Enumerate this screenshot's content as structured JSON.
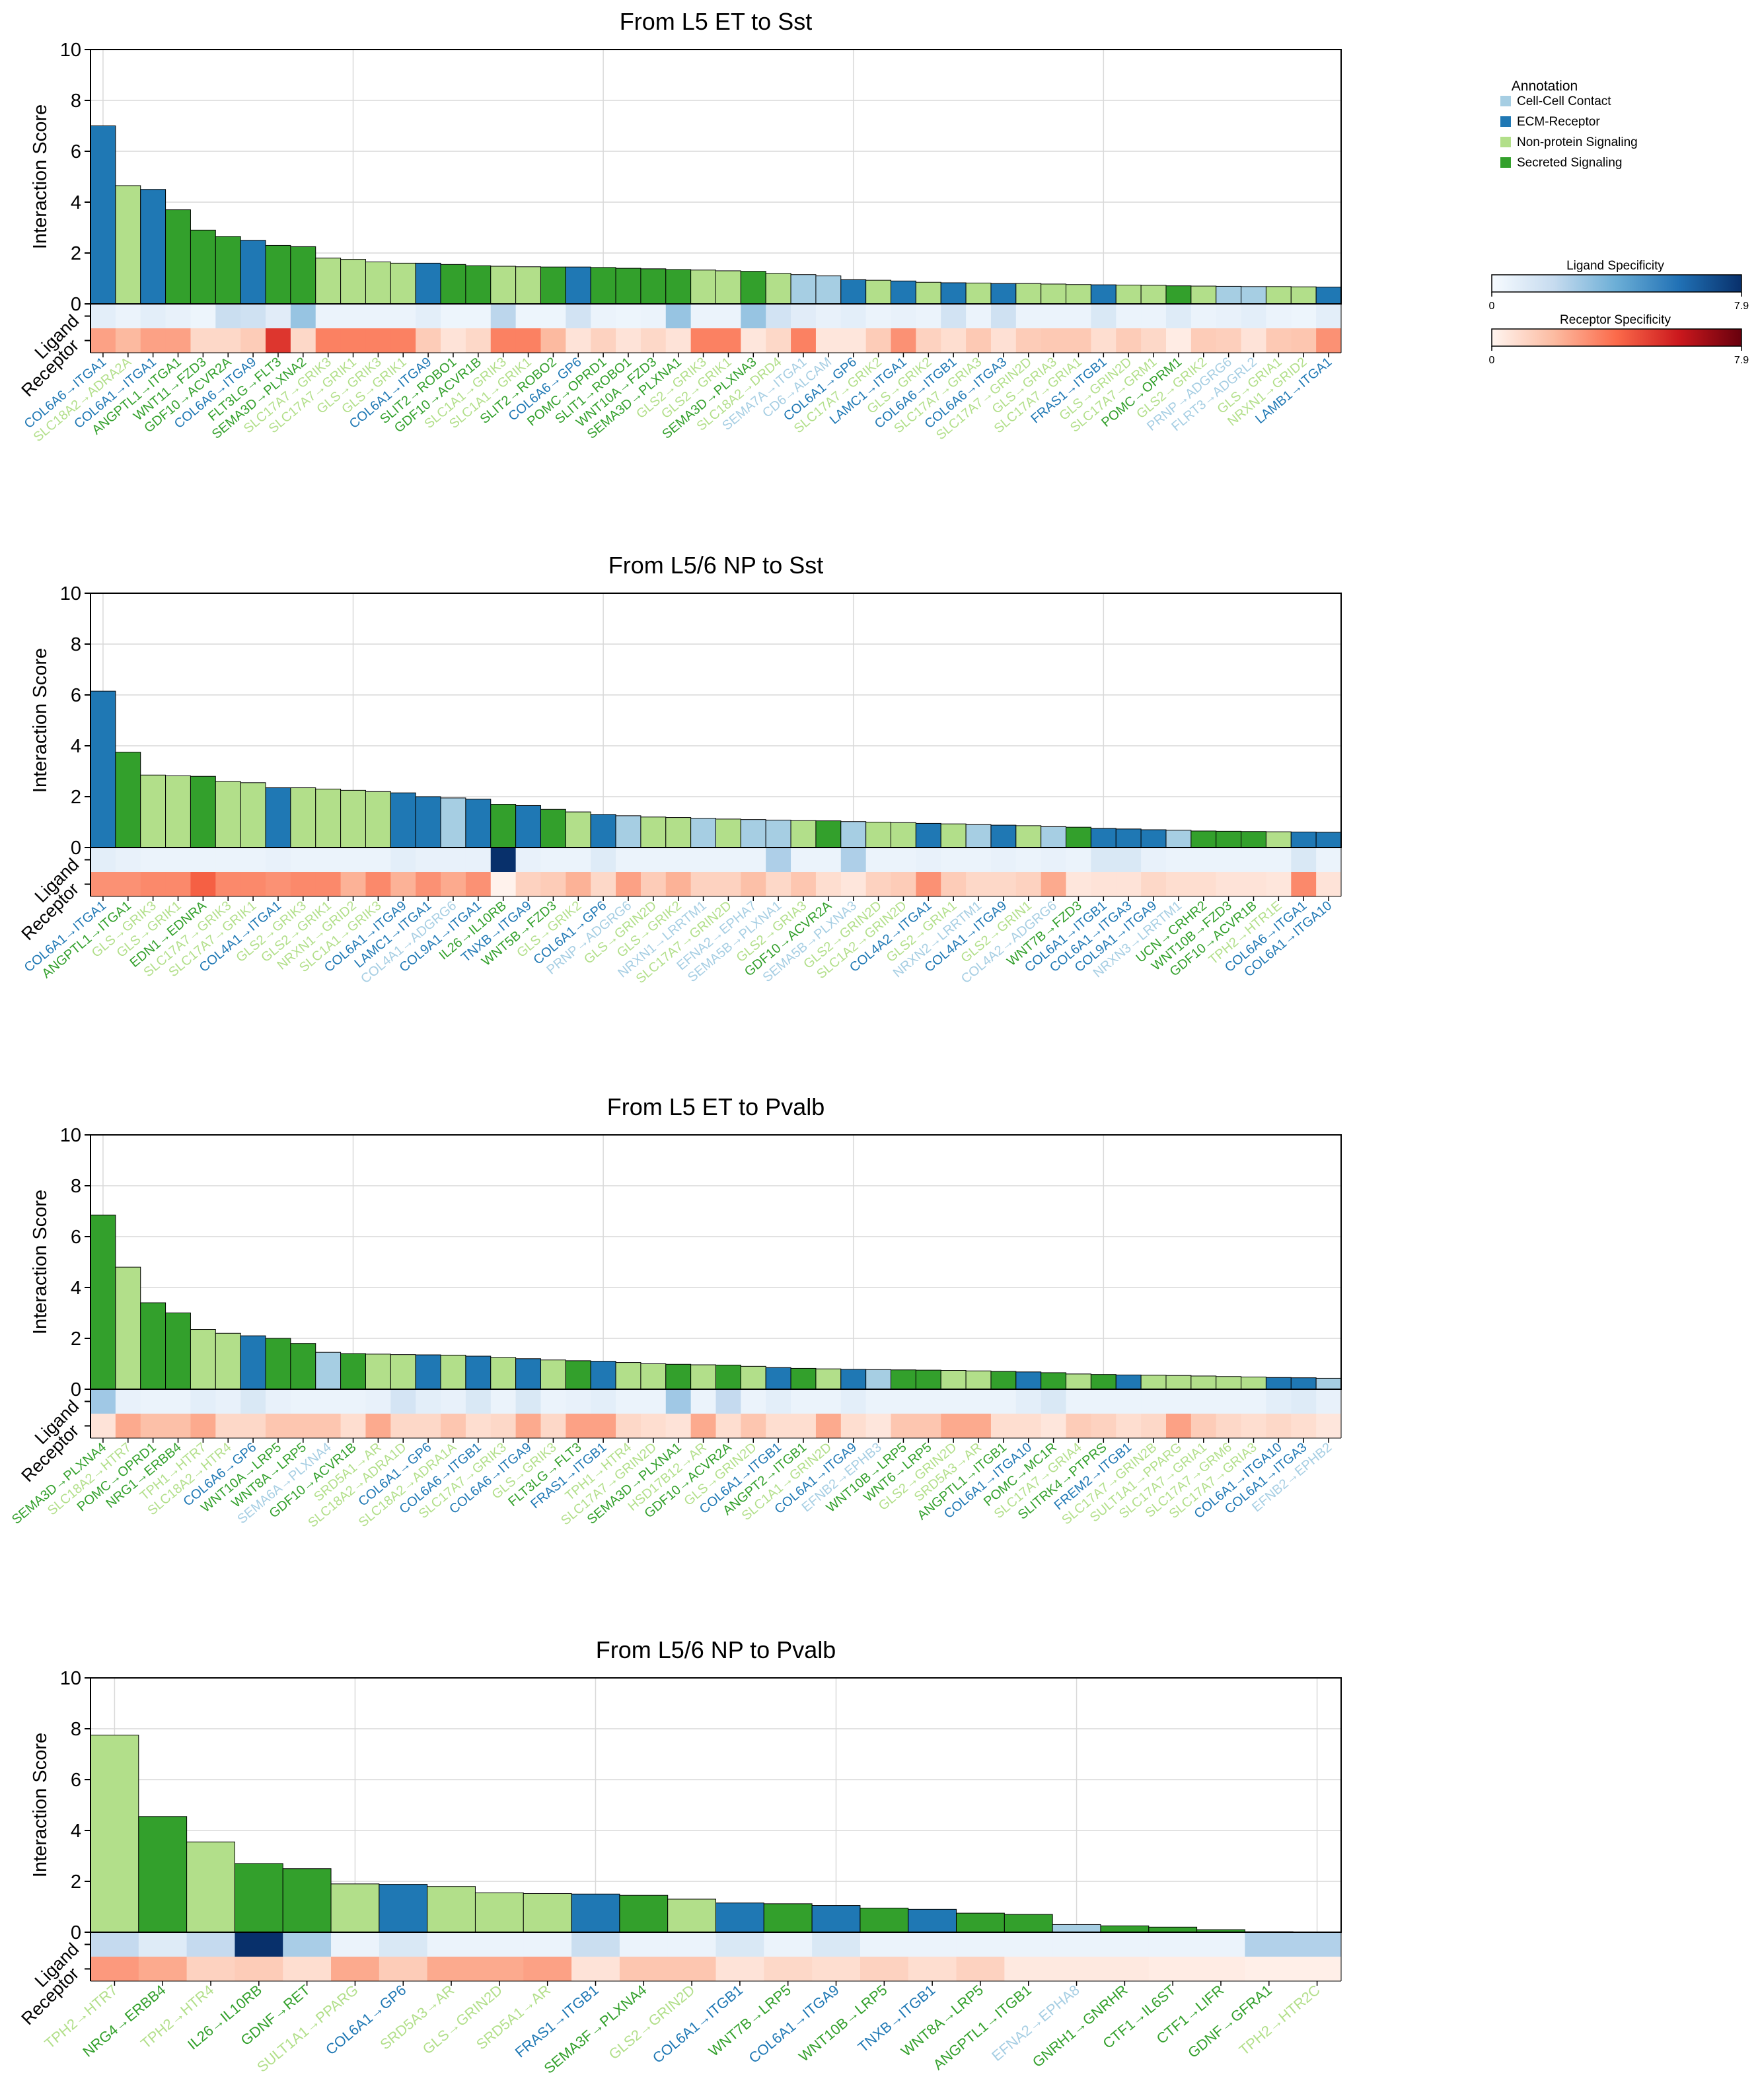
{
  "annotation_colors": {
    "Cell-Cell Contact": "#a6cee3",
    "ECM-Receptor": "#1f78b4",
    "Non-protein Signaling": "#b2df8a",
    "Secreted Signaling": "#33a02c"
  },
  "legend": {
    "title": "Annotation",
    "items": [
      "Cell-Cell Contact",
      "ECM-Receptor",
      "Non-protein Signaling",
      "Secreted Signaling"
    ]
  },
  "colorbars": {
    "ligand": {
      "title": "Ligand Specificity",
      "min_label": "0",
      "max_label": "7.9",
      "min": 0,
      "max": 7.9
    },
    "receptor": {
      "title": "Receptor Specificity",
      "min_label": "0",
      "max_label": "7.9",
      "min": 0,
      "max": 7.9
    }
  },
  "chart_data": [
    {
      "type": "bar",
      "title": "From L5 ET to Sst",
      "ylabel": "Interaction Score",
      "row_labels": [
        "Ligand",
        "Receptor"
      ],
      "ylim": [
        0,
        10
      ],
      "yticks": [
        "0",
        "2",
        "4",
        "6",
        "8",
        "10"
      ],
      "categories": [
        "COL6A6->ITGA1",
        "SLC18A2->ADRA2A",
        "COL6A1->ITGA1",
        "ANGPTL1->ITGA1",
        "WNT11->FZD3",
        "GDF10->ACVR2A",
        "COL6A6->ITGA9",
        "FLT3LG->FLT3",
        "SEMA3D->PLXNA2",
        "SLC17A7->GRIK3",
        "SLC17A7->GRIK1",
        "GLS->GRIK3",
        "GLS->GRIK1",
        "COL6A1->ITGA9",
        "SLIT2->ROBO1",
        "GDF10->ACVR1B",
        "SLC1A1->GRIK3",
        "SLC1A1->GRIK1",
        "SLIT2->ROBO2",
        "COL6A6->GP6",
        "POMC->OPRD1",
        "SLIT1->ROBO1",
        "WNT10A->FZD3",
        "SEMA3D->PLXNA1",
        "GLS2->GRIK3",
        "GLS2->GRIK1",
        "SEMA3D->PLXNA3",
        "SLC18A2->DRD4",
        "SEMA7A->ITGA1",
        "CD6->ALCAM",
        "COL6A1->GP6",
        "SLC17A7->GRIK2",
        "LAMC1->ITGA1",
        "GLS->GRIK2",
        "COL6A6->ITGB1",
        "SLC17A7->GRIA3",
        "COL6A6->ITGA3",
        "SLC17A7->GRIN2D",
        "GLS->GRIA3",
        "SLC17A7->GRIA1",
        "FRAS1->ITGB1",
        "GLS->GRIN2D",
        "SLC17A7->GRM1",
        "POMC->OPRM1",
        "GLS2->GRIK2",
        "PRNP->ADGRG6",
        "FLRT3->ADGRL2",
        "GLS->GRIA1",
        "NRXN1->GRID2",
        "LAMB1->ITGA1"
      ],
      "values": [
        7.0,
        4.65,
        4.5,
        3.7,
        2.9,
        2.65,
        2.5,
        2.3,
        2.25,
        1.8,
        1.75,
        1.65,
        1.6,
        1.6,
        1.55,
        1.5,
        1.48,
        1.46,
        1.45,
        1.45,
        1.43,
        1.4,
        1.38,
        1.35,
        1.33,
        1.3,
        1.28,
        1.2,
        1.15,
        1.1,
        0.95,
        0.93,
        0.9,
        0.85,
        0.83,
        0.82,
        0.8,
        0.8,
        0.78,
        0.76,
        0.75,
        0.74,
        0.73,
        0.71,
        0.7,
        0.69,
        0.68,
        0.68,
        0.67,
        0.66
      ],
      "annotations": [
        "ECM-Receptor",
        "Non-protein Signaling",
        "ECM-Receptor",
        "Secreted Signaling",
        "Secreted Signaling",
        "Secreted Signaling",
        "ECM-Receptor",
        "Secreted Signaling",
        "Secreted Signaling",
        "Non-protein Signaling",
        "Non-protein Signaling",
        "Non-protein Signaling",
        "Non-protein Signaling",
        "ECM-Receptor",
        "Secreted Signaling",
        "Secreted Signaling",
        "Non-protein Signaling",
        "Non-protein Signaling",
        "Secreted Signaling",
        "ECM-Receptor",
        "Secreted Signaling",
        "Secreted Signaling",
        "Secreted Signaling",
        "Secreted Signaling",
        "Non-protein Signaling",
        "Non-protein Signaling",
        "Secreted Signaling",
        "Non-protein Signaling",
        "Cell-Cell Contact",
        "Cell-Cell Contact",
        "ECM-Receptor",
        "Non-protein Signaling",
        "ECM-Receptor",
        "Non-protein Signaling",
        "ECM-Receptor",
        "Non-protein Signaling",
        "ECM-Receptor",
        "Non-protein Signaling",
        "Non-protein Signaling",
        "Non-protein Signaling",
        "ECM-Receptor",
        "Non-protein Signaling",
        "Non-protein Signaling",
        "Secreted Signaling",
        "Non-protein Signaling",
        "Cell-Cell Contact",
        "Cell-Cell Contact",
        "Non-protein Signaling",
        "Non-protein Signaling",
        "ECM-Receptor"
      ],
      "ligand_specificity": [
        0.8,
        0.5,
        0.8,
        0.6,
        0.4,
        1.8,
        1.6,
        0.9,
        3.0,
        0.5,
        0.5,
        0.5,
        0.5,
        0.8,
        0.4,
        0.4,
        2.2,
        0.4,
        0.4,
        1.5,
        0.5,
        0.4,
        0.5,
        3.0,
        0.5,
        0.5,
        3.0,
        1.5,
        0.9,
        0.6,
        0.8,
        0.5,
        0.6,
        0.5,
        1.5,
        0.5,
        1.6,
        0.5,
        0.5,
        0.5,
        1.2,
        0.5,
        0.5,
        1.0,
        0.5,
        0.6,
        0.8,
        0.5,
        0.4,
        0.8
      ],
      "receptor_specificity": [
        2.6,
        2.0,
        2.6,
        2.6,
        1.0,
        1.0,
        1.4,
        5.2,
        1.0,
        3.4,
        3.4,
        3.4,
        3.4,
        1.4,
        0.6,
        1.0,
        3.4,
        3.4,
        2.0,
        0.6,
        1.2,
        0.6,
        1.0,
        0.6,
        3.4,
        3.4,
        0.5,
        1.0,
        3.4,
        0.5,
        0.5,
        1.4,
        3.0,
        1.2,
        0.8,
        1.5,
        0.7,
        1.4,
        1.5,
        1.5,
        0.8,
        1.4,
        1.0,
        0.3,
        1.4,
        1.3,
        0.6,
        1.5,
        1.6,
        3.0
      ]
    },
    {
      "type": "bar",
      "title": "From L5/6 NP to Sst",
      "ylabel": "Interaction Score",
      "row_labels": [
        "Ligand",
        "Receptor"
      ],
      "ylim": [
        0,
        10
      ],
      "yticks": [
        "0",
        "2",
        "4",
        "6",
        "8",
        "10"
      ],
      "categories": [
        "COL6A1->ITGA1",
        "ANGPTL1->ITGA1",
        "GLS->GRIK3",
        "GLS->GRIK1",
        "EDN1->EDNRA",
        "SLC17A7->GRIK3",
        "SLC17A7->GRIK1",
        "COL4A1->ITGA1",
        "GLS2->GRIK3",
        "GLS2->GRIK1",
        "NRXN1->GRID2",
        "SLC1A1->GRIK3",
        "COL6A1->ITGA9",
        "LAMC1->ITGA1",
        "COL4A1->ADGRG6",
        "COL9A1->ITGA1",
        "IL26->IL10RB",
        "TNXB->ITGA9",
        "WNT5B->FZD3",
        "GLS->GRIK2",
        "COL6A1->GP6",
        "PRNP->ADGRG6",
        "GLS->GRIN2D",
        "GLS->GRIK2",
        "NRXN1->LRRTM1",
        "SLC17A7->GRIN2D",
        "EFNA2->EPHA7",
        "SEMA5B->PLXNA1",
        "GLS2->GRIA3",
        "GDF10->ACVR2A",
        "SEMA5B->PLXNA3",
        "GLS2->GRIN2D",
        "SLC1A2->GRIN2D",
        "COL4A2->ITGA1",
        "GLS2->GRIA1",
        "NRXN2->LRRTM1",
        "COL4A1->ITGA9",
        "GLS2->GRIN1",
        "COL4A2->ADGRG6",
        "WNT7B->FZD3",
        "COL6A1->ITGB1",
        "COL6A1->ITGA3",
        "COL9A1->ITGA9",
        "NRXN3->LRRTM1",
        "UCN->CRHR2",
        "WNT10B->FZD3",
        "GDF10->ACVR1B",
        "TPH2->HTR1E",
        "COL6A6->ITGA1",
        "COL6A1->ITGA10"
      ],
      "values": [
        6.15,
        3.75,
        2.85,
        2.82,
        2.8,
        2.6,
        2.55,
        2.35,
        2.35,
        2.3,
        2.25,
        2.2,
        2.15,
        2.0,
        1.95,
        1.9,
        1.7,
        1.65,
        1.5,
        1.4,
        1.3,
        1.25,
        1.2,
        1.18,
        1.15,
        1.12,
        1.1,
        1.08,
        1.06,
        1.05,
        1.02,
        1.0,
        0.98,
        0.95,
        0.93,
        0.9,
        0.88,
        0.86,
        0.82,
        0.8,
        0.75,
        0.73,
        0.7,
        0.68,
        0.65,
        0.64,
        0.63,
        0.62,
        0.61,
        0.6
      ],
      "annotations": [
        "ECM-Receptor",
        "Secreted Signaling",
        "Non-protein Signaling",
        "Non-protein Signaling",
        "Secreted Signaling",
        "Non-protein Signaling",
        "Non-protein Signaling",
        "ECM-Receptor",
        "Non-protein Signaling",
        "Non-protein Signaling",
        "Non-protein Signaling",
        "Non-protein Signaling",
        "ECM-Receptor",
        "ECM-Receptor",
        "Cell-Cell Contact",
        "ECM-Receptor",
        "Secreted Signaling",
        "ECM-Receptor",
        "Secreted Signaling",
        "Non-protein Signaling",
        "ECM-Receptor",
        "Cell-Cell Contact",
        "Non-protein Signaling",
        "Non-protein Signaling",
        "Cell-Cell Contact",
        "Non-protein Signaling",
        "Cell-Cell Contact",
        "Cell-Cell Contact",
        "Non-protein Signaling",
        "Secreted Signaling",
        "Cell-Cell Contact",
        "Non-protein Signaling",
        "Non-protein Signaling",
        "ECM-Receptor",
        "Non-protein Signaling",
        "Cell-Cell Contact",
        "ECM-Receptor",
        "Non-protein Signaling",
        "Cell-Cell Contact",
        "Secreted Signaling",
        "ECM-Receptor",
        "ECM-Receptor",
        "ECM-Receptor",
        "Cell-Cell Contact",
        "Secreted Signaling",
        "Secreted Signaling",
        "Secreted Signaling",
        "Non-protein Signaling",
        "ECM-Receptor",
        "ECM-Receptor"
      ],
      "ligand_specificity": [
        0.8,
        0.6,
        0.5,
        0.5,
        0.5,
        0.5,
        0.5,
        0.6,
        0.5,
        0.5,
        0.5,
        0.5,
        0.8,
        0.6,
        0.6,
        0.6,
        7.9,
        0.6,
        0.5,
        0.5,
        1.0,
        0.5,
        0.5,
        0.5,
        0.5,
        0.5,
        0.5,
        2.5,
        0.5,
        0.5,
        2.5,
        0.5,
        0.5,
        0.6,
        0.5,
        0.5,
        0.6,
        0.5,
        0.6,
        0.5,
        1.2,
        1.2,
        0.6,
        0.5,
        0.5,
        0.5,
        0.5,
        0.5,
        1.2,
        0.5
      ],
      "receptor_specificity": [
        3.0,
        3.0,
        3.2,
        3.2,
        4.2,
        3.2,
        3.2,
        3.0,
        3.2,
        3.2,
        2.2,
        3.2,
        2.2,
        3.0,
        2.4,
        3.0,
        0.1,
        1.2,
        1.4,
        2.2,
        1.0,
        2.6,
        1.4,
        2.2,
        1.2,
        1.2,
        1.8,
        1.0,
        1.6,
        0.8,
        0.5,
        1.2,
        1.4,
        3.0,
        1.4,
        1.0,
        1.0,
        1.2,
        2.4,
        0.5,
        0.6,
        0.6,
        1.0,
        0.8,
        0.8,
        0.6,
        0.6,
        0.5,
        3.2,
        0.6
      ]
    },
    {
      "type": "bar",
      "title": "From L5 ET to Pvalb",
      "ylabel": "Interaction Score",
      "row_labels": [
        "Ligand",
        "Receptor"
      ],
      "ylim": [
        0,
        10
      ],
      "yticks": [
        "0",
        "2",
        "4",
        "6",
        "8",
        "10"
      ],
      "categories": [
        "SEMA3D->PLXNA4",
        "SLC18A2->HTR7",
        "POMC->OPRD1",
        "NRG1->ERBB4",
        "TPH1->HTR7",
        "SLC18A2->HTR4",
        "COL6A6->GP6",
        "WNT10A->LRP5",
        "WNT8A->LRP5",
        "SEMA6A->PLXNA4",
        "GDF10->ACVR1B",
        "SRD5A1->AR",
        "SLC18A2->ADRA1D",
        "COL6A1->GP6",
        "SLC18A2->ADRA1A",
        "COL6A6->ITGB1",
        "SLC17A7->GRIK3",
        "COL6A6->ITGA9",
        "GLS->GRIK3",
        "FLT3LG->FLT3",
        "FRAS1->ITGB1",
        "TPH1->HTR4",
        "SLC17A7->GRIN2D",
        "SEMA3D->PLXNA1",
        "HSD17B12->AR",
        "GDF10->ACVR2A",
        "GLS->GRIN2D",
        "COL6A1->ITGB1",
        "ANGPT2->ITGB1",
        "SLC1A1->GRIN2D",
        "COL6A1->ITGA9",
        "EFNB2->EPHB3",
        "WNT10B->LRP5",
        "WNT6->LRP5",
        "GLS2->GRIN2D",
        "SRD5A3->AR",
        "ANGPTL1->ITGB1",
        "COL6A1->ITGA10",
        "POMC->MC1R",
        "SLC17A7->GRIA4",
        "SLITRK4->PTPRS",
        "FREM2->ITGB1",
        "SLC17A7->GRIN2B",
        "SULT1A1->PPARG",
        "SLC17A7->GRIA1",
        "SLC17A7->GRM6",
        "SLC17A7->GRIA3",
        "COL6A1->ITGA10",
        "COL6A1->ITGA3",
        "EFNB2->EPHB2"
      ],
      "values": [
        6.85,
        4.8,
        3.4,
        3.0,
        2.35,
        2.2,
        2.1,
        2.0,
        1.8,
        1.45,
        1.4,
        1.38,
        1.36,
        1.35,
        1.34,
        1.3,
        1.25,
        1.2,
        1.15,
        1.12,
        1.1,
        1.05,
        1.0,
        0.98,
        0.96,
        0.95,
        0.9,
        0.85,
        0.82,
        0.8,
        0.78,
        0.77,
        0.76,
        0.75,
        0.74,
        0.72,
        0.7,
        0.68,
        0.65,
        0.6,
        0.58,
        0.56,
        0.55,
        0.54,
        0.52,
        0.5,
        0.48,
        0.46,
        0.45,
        0.43
      ],
      "annotations": [
        "Secreted Signaling",
        "Non-protein Signaling",
        "Secreted Signaling",
        "Secreted Signaling",
        "Non-protein Signaling",
        "Non-protein Signaling",
        "ECM-Receptor",
        "Secreted Signaling",
        "Secreted Signaling",
        "Cell-Cell Contact",
        "Secreted Signaling",
        "Non-protein Signaling",
        "Non-protein Signaling",
        "ECM-Receptor",
        "Non-protein Signaling",
        "ECM-Receptor",
        "Non-protein Signaling",
        "ECM-Receptor",
        "Non-protein Signaling",
        "Secreted Signaling",
        "ECM-Receptor",
        "Non-protein Signaling",
        "Non-protein Signaling",
        "Secreted Signaling",
        "Non-protein Signaling",
        "Secreted Signaling",
        "Non-protein Signaling",
        "ECM-Receptor",
        "Secreted Signaling",
        "Non-protein Signaling",
        "ECM-Receptor",
        "Cell-Cell Contact",
        "Secreted Signaling",
        "Secreted Signaling",
        "Non-protein Signaling",
        "Non-protein Signaling",
        "Secreted Signaling",
        "ECM-Receptor",
        "Secreted Signaling",
        "Non-protein Signaling",
        "Secreted Signaling",
        "ECM-Receptor",
        "Non-protein Signaling",
        "Non-protein Signaling",
        "Non-protein Signaling",
        "Non-protein Signaling",
        "Non-protein Signaling",
        "ECM-Receptor",
        "ECM-Receptor",
        "Cell-Cell Contact"
      ],
      "ligand_specificity": [
        2.8,
        0.6,
        0.5,
        0.5,
        0.8,
        0.6,
        1.2,
        0.6,
        0.5,
        0.5,
        0.5,
        0.6,
        1.4,
        0.8,
        0.6,
        1.2,
        0.5,
        1.2,
        0.5,
        0.6,
        0.8,
        0.5,
        0.5,
        2.8,
        0.5,
        2.0,
        0.5,
        0.8,
        0.5,
        0.5,
        0.8,
        0.5,
        0.5,
        0.5,
        0.5,
        0.5,
        0.5,
        0.8,
        1.2,
        0.5,
        0.5,
        0.5,
        0.5,
        0.5,
        0.5,
        0.5,
        0.5,
        0.8,
        1.0,
        0.6
      ],
      "receptor_specificity": [
        0.6,
        2.4,
        1.8,
        1.8,
        2.4,
        1.0,
        1.0,
        1.6,
        1.6,
        1.6,
        0.8,
        2.4,
        1.0,
        1.0,
        1.6,
        0.8,
        1.0,
        2.4,
        1.0,
        2.6,
        2.6,
        1.0,
        0.8,
        0.6,
        2.4,
        0.8,
        1.6,
        0.8,
        0.8,
        2.4,
        0.8,
        0.5,
        1.6,
        1.6,
        2.4,
        2.4,
        0.8,
        0.8,
        0.5,
        1.4,
        1.2,
        0.8,
        1.0,
        2.6,
        1.4,
        1.0,
        0.8,
        1.0,
        0.8,
        0.5
      ]
    },
    {
      "type": "bar",
      "title": "From L5/6 NP to Pvalb",
      "ylabel": "Interaction Score",
      "row_labels": [
        "Ligand",
        "Receptor"
      ],
      "ylim": [
        0,
        10
      ],
      "yticks": [
        "0",
        "2",
        "4",
        "6",
        "8",
        "10"
      ],
      "categories": [
        "TPH2->HTR7",
        "NRG4->ERBB4",
        "TPH2->HTR4",
        "IL26->IL10RB",
        "GDNF->RET",
        "SULT1A1->PPARG",
        "COL6A1->GP6",
        "SRD5A3->AR",
        "GLS->GRIN2D",
        "SRD5A1->AR",
        "FRAS1->ITGB1",
        "SEMA3F->PLXNA4",
        "GLS2->GRIN2D",
        "COL6A1->ITGB1",
        "WNT7B->LRP5",
        "COL6A1->ITGA9",
        "WNT10B->LRP5",
        "TNXB->ITGB1",
        "WNT8A->LRP5",
        "ANGPTL1->ITGB1",
        "EFNA2->EPHA8",
        "GNRH1->GNRHR",
        "CTF1->IL6ST",
        "CTF1->LIFR",
        "GDNF->GFRA1",
        "TPH2->HTR2C"
      ],
      "values": [
        7.75,
        4.55,
        3.55,
        2.7,
        2.5,
        1.9,
        1.88,
        1.8,
        1.55,
        1.52,
        1.5,
        1.45,
        1.3,
        1.15,
        1.12,
        1.05,
        0.95,
        0.9,
        0.75,
        0.7,
        0.3,
        0.25,
        0.2,
        0.1,
        0.02,
        0.0
      ],
      "annotations": [
        "Non-protein Signaling",
        "Secreted Signaling",
        "Non-protein Signaling",
        "Secreted Signaling",
        "Secreted Signaling",
        "Non-protein Signaling",
        "ECM-Receptor",
        "Non-protein Signaling",
        "Non-protein Signaling",
        "Non-protein Signaling",
        "ECM-Receptor",
        "Secreted Signaling",
        "Non-protein Signaling",
        "ECM-Receptor",
        "Secreted Signaling",
        "ECM-Receptor",
        "Secreted Signaling",
        "ECM-Receptor",
        "Secreted Signaling",
        "Secreted Signaling",
        "Cell-Cell Contact",
        "Secreted Signaling",
        "Secreted Signaling",
        "Secreted Signaling",
        "Secreted Signaling",
        "Non-protein Signaling"
      ],
      "ligand_specificity": [
        2.0,
        1.0,
        2.0,
        7.9,
        2.6,
        0.5,
        1.2,
        0.5,
        0.5,
        0.5,
        1.8,
        0.5,
        0.5,
        1.2,
        0.5,
        1.2,
        0.5,
        0.5,
        0.5,
        0.5,
        0.5,
        0.5,
        0.5,
        0.5,
        2.4,
        2.4
      ],
      "receptor_specificity": [
        2.8,
        2.4,
        1.2,
        1.4,
        0.8,
        2.4,
        1.4,
        2.4,
        2.4,
        2.6,
        0.6,
        1.6,
        1.6,
        0.6,
        1.0,
        0.8,
        1.2,
        0.8,
        1.2,
        0.4,
        0.4,
        0.4,
        0.3,
        0.3,
        0.2,
        0.2
      ]
    }
  ]
}
